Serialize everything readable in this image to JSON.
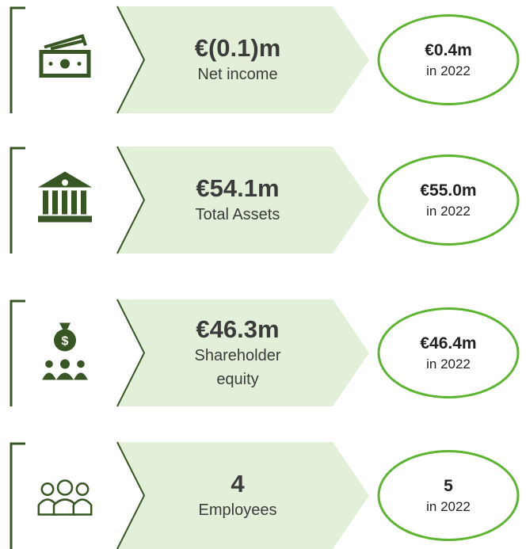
{
  "items": [
    {
      "value": "€(0.1)m",
      "label": "Net income",
      "prior_value": "€0.4m",
      "prior_label": "in 2022"
    },
    {
      "value": "€54.1m",
      "label": "Total Assets",
      "prior_value": "€55.0m",
      "prior_label": "in 2022"
    },
    {
      "value": "€46.3m",
      "label": "Shareholder equity",
      "prior_value": "€46.4m",
      "prior_label": "in 2022"
    },
    {
      "value": "4",
      "label": "Employees",
      "prior_value": "5",
      "prior_label": "in 2022"
    }
  ]
}
